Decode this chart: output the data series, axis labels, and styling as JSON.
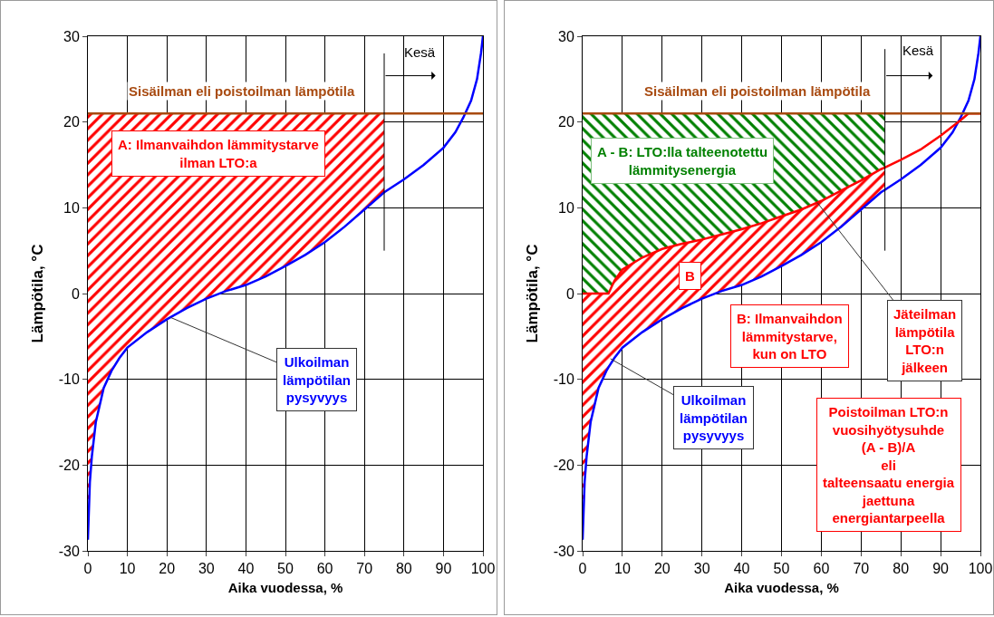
{
  "chart_data": [
    {
      "type": "line",
      "xlabel": "Aika vuodessa, %",
      "ylabel": "Lämpötila, °C",
      "xlim": [
        0,
        100
      ],
      "xticks": [
        0,
        10,
        20,
        30,
        40,
        50,
        60,
        70,
        80,
        90,
        100
      ],
      "ylim": [
        -30,
        30
      ],
      "yticks": [
        -30,
        -20,
        -10,
        0,
        10,
        20,
        30
      ],
      "grid": true,
      "series": [
        {
          "type": "line",
          "name": "Ulkoilman\nlämpötilan\npysyvyys",
          "color": "#0000ff",
          "x": [
            0,
            0.5,
            1,
            2,
            4,
            6,
            8,
            10,
            15,
            20,
            25,
            30,
            35,
            40,
            45,
            50,
            55,
            60,
            65,
            70,
            75,
            80,
            85,
            90,
            93,
            95,
            97,
            98.5,
            99.5,
            100
          ],
          "values": [
            -28.7,
            -22,
            -19,
            -15,
            -11,
            -9,
            -7.5,
            -6.3,
            -4.5,
            -3,
            -1.7,
            -0.6,
            0.3,
            1,
            2,
            3.2,
            4.5,
            6,
            7.8,
            9.8,
            11.8,
            13.3,
            15,
            17,
            18.8,
            20.5,
            22.5,
            25,
            28,
            30
          ],
          "lower": [
            -28.7,
            -22,
            -19,
            -15,
            -11,
            -9,
            -7.5,
            -6.3,
            -4.5,
            -3,
            -1.7,
            -0.6,
            0.3,
            1,
            2,
            3.2,
            4.5,
            6,
            7.8,
            9.8,
            11.8,
            null,
            null,
            null,
            null,
            null,
            null,
            null,
            null,
            null
          ],
          "upper": [
            21,
            21,
            21,
            21,
            21,
            21,
            21,
            21,
            21,
            21,
            21,
            21,
            21,
            21,
            21,
            21,
            21,
            21,
            21,
            21,
            21,
            null,
            null,
            null,
            null,
            null,
            null,
            null,
            null,
            null
          ]
        }
      ],
      "ref_lines": [
        {
          "axis": "y",
          "value": 21,
          "label": "Sisäilman eli poistoilman lämpötila",
          "color": "#a84a10"
        },
        {
          "axis": "x",
          "value": 75,
          "label": "Kesä",
          "color": "#000000"
        }
      ],
      "annotations": [
        "A: Ilmanvaihdon lämmitystarve\nilman LTO:a"
      ]
    },
    {
      "type": "line",
      "xlabel": "Aika vuodessa, %",
      "ylabel": "Lämpötila, °C",
      "xlim": [
        0,
        100
      ],
      "xticks": [
        0,
        10,
        20,
        30,
        40,
        50,
        60,
        70,
        80,
        90,
        100
      ],
      "ylim": [
        -30,
        30
      ],
      "yticks": [
        -30,
        -20,
        -10,
        0,
        10,
        20,
        30
      ],
      "grid": true,
      "series": [
        {
          "type": "line",
          "name": "Ulkoilman\nlämpötilan\npysyvyys",
          "color": "#0000ff",
          "x": [
            0,
            0.5,
            1,
            2,
            4,
            6,
            6.5,
            8,
            10,
            15,
            20,
            25,
            30,
            35,
            40,
            45,
            50,
            55,
            60,
            65,
            70,
            75,
            76,
            80,
            85,
            90,
            93,
            95,
            97,
            98.5,
            99.5,
            100
          ],
          "values": [
            -28.7,
            -22,
            -19,
            -15,
            -11,
            -9,
            -8.6,
            -7.5,
            -6.3,
            -4.5,
            -3,
            -1.7,
            -0.6,
            0.3,
            1,
            2,
            3.2,
            4.5,
            6,
            7.8,
            9.8,
            11.8,
            12.1,
            13.3,
            15,
            17,
            18.8,
            20.5,
            22.5,
            25,
            28,
            30
          ],
          "lower": [
            -28.7,
            -22,
            -19,
            -15,
            -11,
            -9,
            -8.6,
            -7.5,
            -6.3,
            -4.5,
            -3,
            -1.7,
            -0.6,
            0.3,
            1,
            2,
            3.2,
            4.5,
            6,
            7.8,
            9.8,
            11.8,
            12.1,
            null,
            null,
            null,
            null,
            null,
            null,
            null,
            null,
            null
          ],
          "upper": [
            0,
            0,
            0,
            0,
            0,
            0,
            0,
            1.5,
            2.8,
            4.2,
            5.2,
            5.8,
            6.3,
            6.9,
            7.5,
            8.2,
            9,
            9.8,
            10.8,
            12,
            13.2,
            14.5,
            14.7,
            null,
            null,
            null,
            null,
            null,
            null,
            null,
            null,
            null
          ]
        },
        {
          "type": "line",
          "name": "Jäteilman\nlämpötila\nLTO:n\njälkeen",
          "color": "#ff0000",
          "x": [
            0,
            6.5,
            8,
            10,
            15,
            20,
            25,
            30,
            35,
            40,
            45,
            50,
            55,
            60,
            65,
            70,
            75,
            76,
            80,
            85,
            90,
            95,
            97,
            100
          ],
          "values": [
            0,
            0,
            1.5,
            2.8,
            4.2,
            5.2,
            5.8,
            6.3,
            6.9,
            7.5,
            8.2,
            9,
            9.8,
            10.8,
            12,
            13.2,
            14.5,
            14.7,
            15.6,
            16.8,
            18.4,
            20.2,
            21,
            21
          ],
          "lower": [
            0,
            0,
            1.5,
            2.8,
            4.2,
            5.2,
            5.8,
            6.3,
            6.9,
            7.5,
            8.2,
            9,
            9.8,
            10.8,
            12,
            13.2,
            14.5,
            14.7,
            null,
            null,
            null,
            null,
            null,
            null
          ],
          "upper": [
            21,
            21,
            21,
            21,
            21,
            21,
            21,
            21,
            21,
            21,
            21,
            21,
            21,
            21,
            21,
            21,
            21,
            21,
            null,
            null,
            null,
            null,
            null,
            null
          ]
        }
      ],
      "ref_lines": [
        {
          "axis": "y",
          "value": 21,
          "label": "Sisäilman eli poistoilman lämpötila",
          "color": "#a84a10"
        },
        {
          "axis": "x",
          "value": 76,
          "label": "Kesä",
          "color": "#000000"
        }
      ],
      "annotations": [
        "A - B: LTO:lla talteenotettu\nlämmitysenergia",
        "B",
        "B: Ilmanvaihdon\nlämmitystarve,\nkun on LTO",
        "Poistoilman LTO:n\nvuosihyötysuhde\n(A - B)/A\neli\ntalteensaatu energia\njaettuna\nenergiantarpeella"
      ]
    }
  ]
}
